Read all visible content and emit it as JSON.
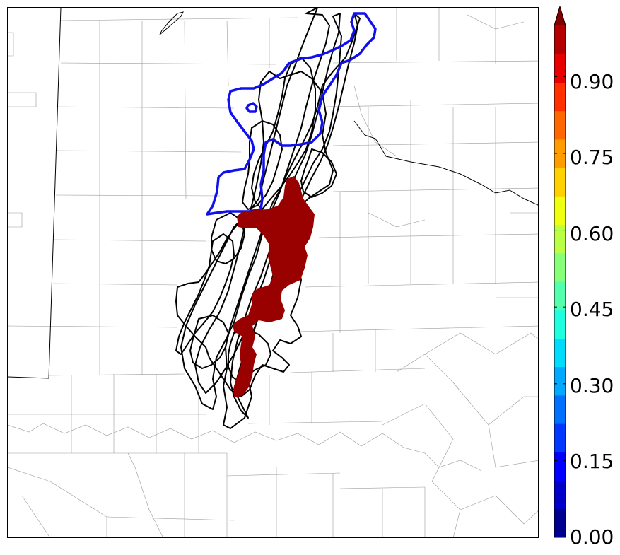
{
  "map": {
    "layers": {
      "county_lines": "thin gray county boundaries",
      "state_lines": "thin black state boundaries",
      "rivers": "thin black river",
      "ensemble_contours": "black contours",
      "highlight_contour": "blue contour",
      "probability_fill": "dark red filled region"
    },
    "colors": {
      "county": "#9a9a9a",
      "state": "#000000",
      "ensemble": "#000000",
      "highlight": "#1010ee",
      "fill": "#990000"
    }
  },
  "colorbar": {
    "min": 0.0,
    "max": 1.0,
    "extend": "max",
    "colormap": "jet",
    "colors": [
      "#00008f",
      "#0000c8",
      "#0000ff",
      "#0038ff",
      "#0070ff",
      "#00a8ff",
      "#00dcfe",
      "#1fffdf",
      "#53ffac",
      "#87ff78",
      "#bbff44",
      "#efff10",
      "#ffd100",
      "#ff9c00",
      "#ff6700",
      "#ff3000",
      "#e80000",
      "#b40000",
      "#800000"
    ],
    "ticks": [
      {
        "value": 0.0,
        "label": "0.00"
      },
      {
        "value": 0.15,
        "label": "0.15"
      },
      {
        "value": 0.3,
        "label": "0.30"
      },
      {
        "value": 0.45,
        "label": "0.45"
      },
      {
        "value": 0.6,
        "label": "0.60"
      },
      {
        "value": 0.75,
        "label": "0.75"
      },
      {
        "value": 0.9,
        "label": "0.90"
      }
    ]
  }
}
